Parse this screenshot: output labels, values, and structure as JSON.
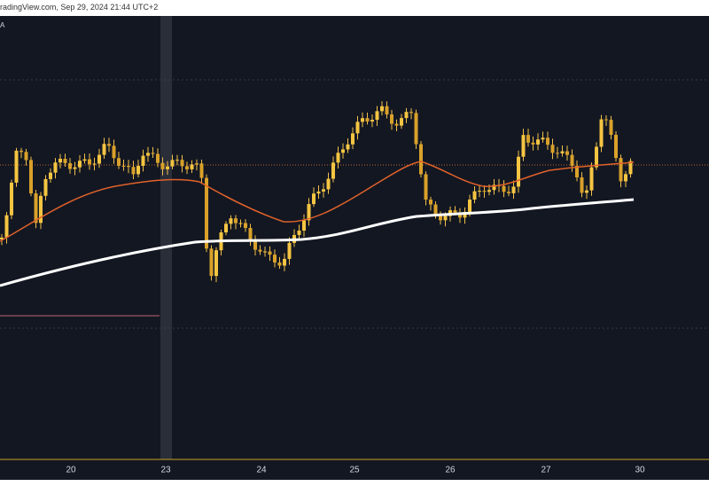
{
  "header": {
    "source": "radingView.com, Sep 29, 2024 21:44 UTC+2",
    "indicator": "A"
  },
  "x_axis": {
    "labels": [
      "20",
      "23",
      "24",
      "25",
      "26",
      "27",
      "30"
    ]
  }
}
